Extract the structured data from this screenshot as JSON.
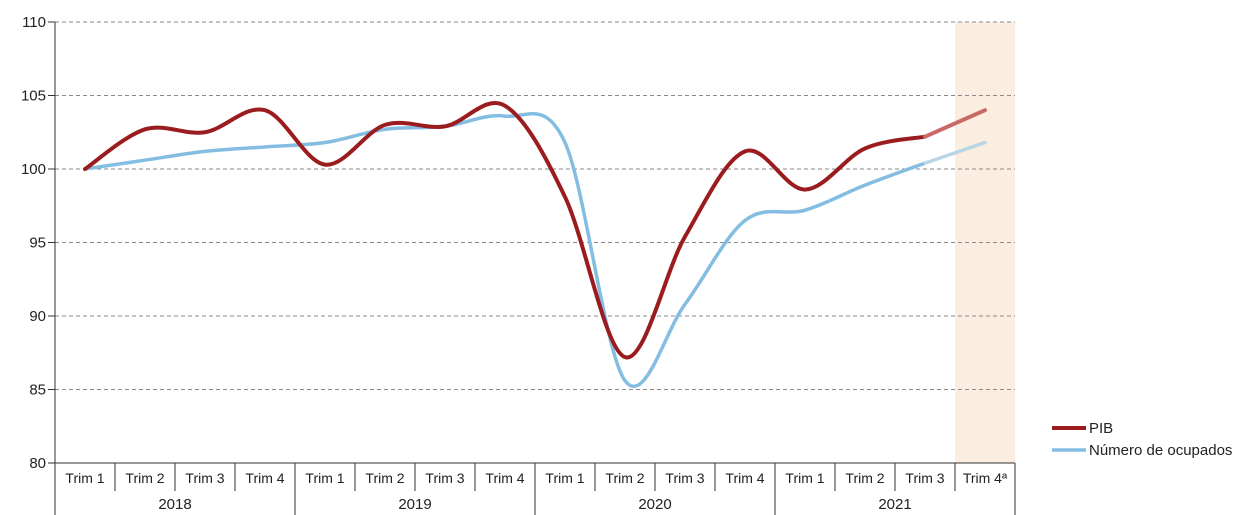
{
  "chart_data": {
    "type": "line",
    "title": "",
    "xlabel": "",
    "ylabel": "",
    "ylim": [
      80,
      110
    ],
    "yticks": [
      80,
      85,
      90,
      95,
      100,
      105,
      110
    ],
    "grid": "horizontal-dashed",
    "legend_position": "bottom-right",
    "categories": [
      "Trim 1",
      "Trim 2",
      "Trim 3",
      "Trim 4",
      "Trim 1",
      "Trim 2",
      "Trim 3",
      "Trim 4",
      "Trim 1",
      "Trim 2",
      "Trim 3",
      "Trim 4",
      "Trim 1",
      "Trim 2",
      "Trim 3",
      "Trim 4ª"
    ],
    "years": [
      {
        "label": "2018",
        "span": 4
      },
      {
        "label": "2019",
        "span": 4
      },
      {
        "label": "2020",
        "span": 4
      },
      {
        "label": "2021",
        "span": 4
      }
    ],
    "highlight": {
      "category_index": 15,
      "color": "#fbeee0"
    },
    "series": [
      {
        "name": "PIB",
        "color": "#9b1c1f",
        "faded_color": "#c96a68",
        "values": [
          100,
          102.7,
          102.5,
          104.0,
          100.3,
          103.0,
          102.9,
          104.3,
          98.1,
          87.2,
          95.4,
          101.2,
          98.6,
          101.4,
          102.2,
          104.0
        ]
      },
      {
        "name": "Número de ocupados",
        "color": "#84bde2",
        "faded_color": "#b9d6e6",
        "values": [
          100,
          100.6,
          101.2,
          101.5,
          101.8,
          102.7,
          102.9,
          103.6,
          101.8,
          85.6,
          90.8,
          96.5,
          97.2,
          98.9,
          100.4,
          101.8
        ]
      }
    ]
  }
}
